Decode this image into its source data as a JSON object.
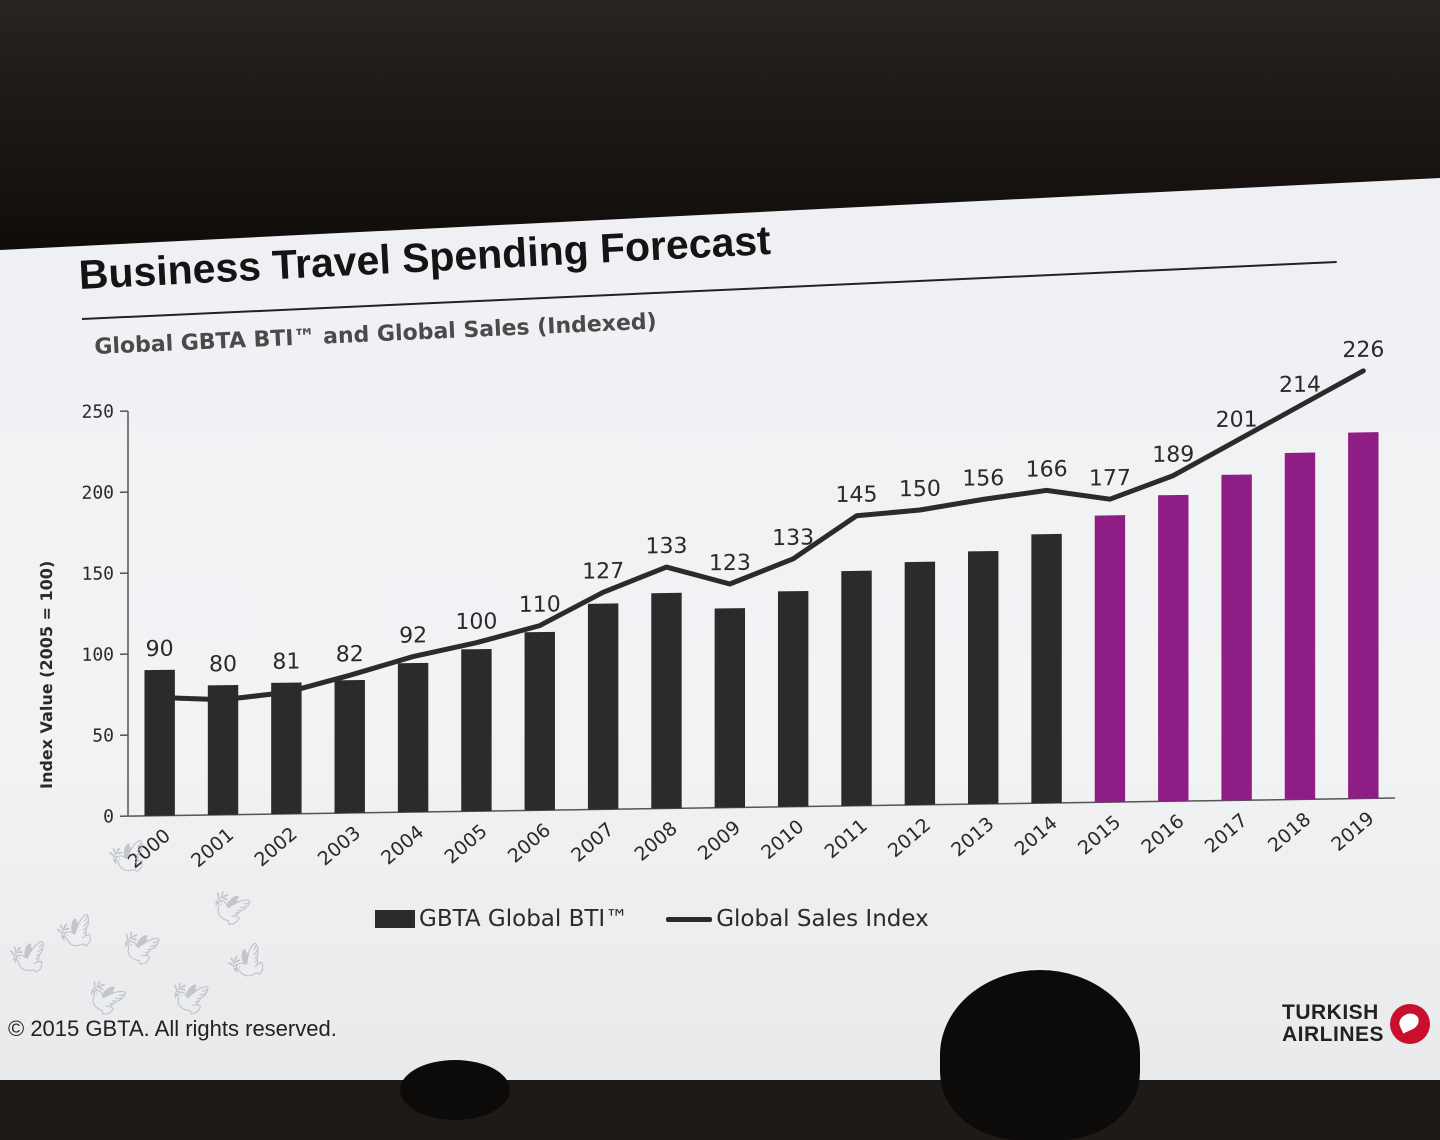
{
  "slide": {
    "title": "Business Travel Spending Forecast",
    "subtitle": "Global GBTA BTI™ and Global Sales (Indexed)",
    "copyright": "© 2015 GBTA. All rights reserved.",
    "logo_line1": "TURKISH",
    "logo_line2": "AIRLINES"
  },
  "legend": {
    "bars_label": "GBTA Global BTI™",
    "line_label": "Global Sales Index"
  },
  "chart_data": {
    "type": "bar",
    "title": "Global GBTA BTI™ and Global Sales (Indexed)",
    "ylabel": "Index Value (2005 = 100)",
    "xlabel": "",
    "ylim": [
      0,
      250
    ],
    "yticks": [
      0,
      50,
      100,
      150,
      200,
      250
    ],
    "categories": [
      "2000",
      "2001",
      "2002",
      "2003",
      "2004",
      "2005",
      "2006",
      "2007",
      "2008",
      "2009",
      "2010",
      "2011",
      "2012",
      "2013",
      "2014",
      "2015",
      "2016",
      "2017",
      "2018",
      "2019"
    ],
    "data_labels": [
      "90",
      "80",
      "81",
      "82",
      "92",
      "100",
      "110",
      "127",
      "133",
      "123",
      "133",
      "145",
      "150",
      "156",
      "166",
      "177",
      "189",
      "201",
      "214",
      "226"
    ],
    "series": [
      {
        "name": "GBTA Global BTI™",
        "type": "bar",
        "values": [
          90,
          80,
          81,
          82,
          92,
          100,
          110,
          127,
          133,
          123,
          133,
          145,
          150,
          156,
          166,
          177,
          189,
          201,
          214,
          226
        ],
        "colors": [
          "#2b2b2b",
          "#2b2b2b",
          "#2b2b2b",
          "#2b2b2b",
          "#2b2b2b",
          "#2b2b2b",
          "#2b2b2b",
          "#2b2b2b",
          "#2b2b2b",
          "#2b2b2b",
          "#2b2b2b",
          "#2b2b2b",
          "#2b2b2b",
          "#2b2b2b",
          "#2b2b2b",
          "#8e1e86",
          "#8e1e86",
          "#8e1e86",
          "#8e1e86",
          "#8e1e86"
        ]
      },
      {
        "name": "Global Sales Index",
        "type": "line",
        "values": [
          73,
          71,
          75,
          85,
          96,
          104,
          114,
          134,
          149,
          138,
          153,
          179,
          182,
          188,
          193,
          187,
          201,
          222,
          243,
          264
        ],
        "color": "#2b2b2b"
      }
    ],
    "grid": false,
    "legend_position": "bottom"
  }
}
